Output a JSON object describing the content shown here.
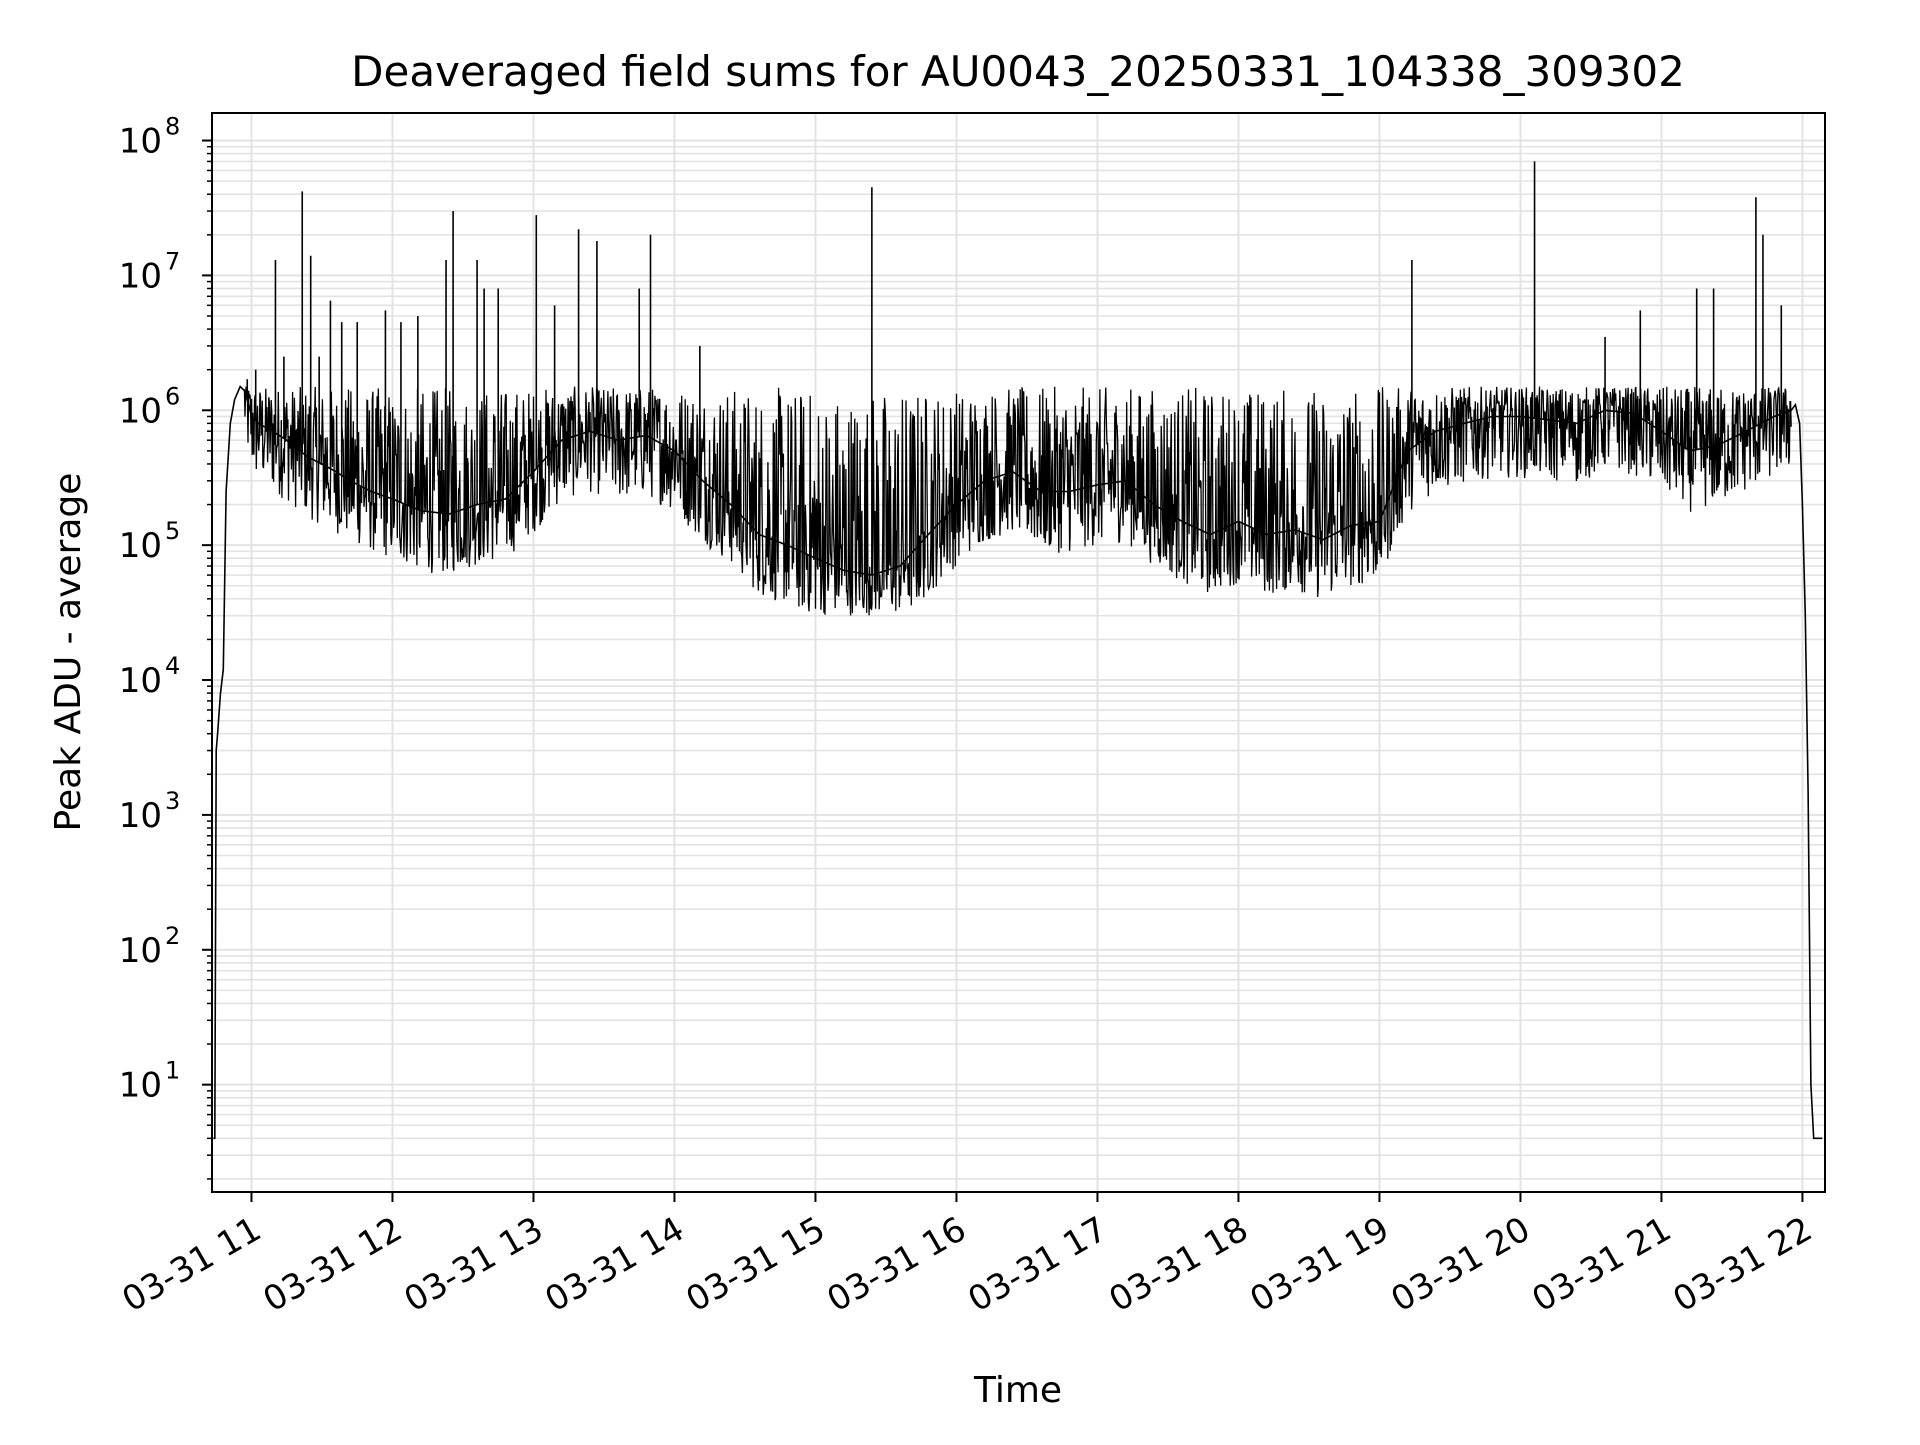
{
  "chart_data": {
    "type": "line",
    "title": "Deaveraged field sums for AU0043_20250331_104338_309302",
    "xlabel": "Time",
    "ylabel": "Peak ADU - average",
    "yscale": "log",
    "grid": true,
    "legend": "none",
    "x_tick_labels": [
      "03-31 11",
      "03-31 12",
      "03-31 13",
      "03-31 14",
      "03-31 15",
      "03-31 16",
      "03-31 17",
      "03-31 18",
      "03-31 19",
      "03-31 20",
      "03-31 21",
      "03-31 22"
    ],
    "x_tick_hours": [
      11,
      12,
      13,
      14,
      15,
      16,
      17,
      18,
      19,
      20,
      21,
      22
    ],
    "xlim_hours": [
      10.72,
      22.16
    ],
    "y_tick_exponents": [
      1,
      2,
      3,
      4,
      5,
      6,
      7,
      8
    ],
    "y_tick_base": "10",
    "ylim": [
      1.6,
      160000000
    ],
    "line_color": "#000000",
    "series": [
      {
        "x_hours": [
          10.73,
          10.74,
          10.75,
          10.76,
          10.78,
          10.8,
          10.82,
          10.85,
          10.88,
          10.92,
          10.95,
          10.98,
          11.0,
          11.05,
          11.15,
          11.25,
          11.4,
          11.5,
          11.6,
          11.7,
          11.85,
          12.0,
          12.2,
          12.4,
          12.6,
          12.8,
          13.0,
          13.2,
          13.4,
          13.6,
          13.8,
          14.0,
          14.2,
          14.4,
          14.6,
          14.8,
          15.0,
          15.2,
          15.4,
          15.6,
          15.8,
          16.0,
          16.2,
          16.4,
          16.6,
          16.8,
          17.0,
          17.2,
          17.4,
          17.6,
          17.8,
          18.0,
          18.2,
          18.4,
          18.6,
          18.8,
          19.0,
          19.2,
          19.4,
          19.6,
          19.8,
          20.0,
          20.2,
          20.4,
          20.6,
          20.8,
          21.0,
          21.2,
          21.4,
          21.6,
          21.8,
          21.92,
          21.95,
          21.98,
          22.0,
          22.02,
          22.04,
          22.06,
          22.08,
          22.1,
          22.12,
          22.14
        ],
        "y": [
          4,
          4,
          3000,
          4000,
          8000,
          12000,
          250000,
          800000,
          1200000,
          1500000,
          1400000,
          1100000,
          900000,
          800000,
          700000,
          600000,
          450000,
          400000,
          350000,
          300000,
          250000,
          220000,
          180000,
          170000,
          200000,
          220000,
          350000,
          600000,
          700000,
          600000,
          650000,
          500000,
          300000,
          200000,
          120000,
          100000,
          80000,
          65000,
          60000,
          70000,
          120000,
          200000,
          300000,
          350000,
          250000,
          250000,
          280000,
          300000,
          200000,
          150000,
          120000,
          150000,
          120000,
          130000,
          110000,
          140000,
          150000,
          500000,
          700000,
          800000,
          900000,
          900000,
          850000,
          800000,
          1000000,
          950000,
          700000,
          500000,
          550000,
          700000,
          900000,
          1000000,
          1100000,
          800000,
          200000,
          30000,
          1500,
          10,
          4,
          4,
          4,
          4
        ]
      }
    ],
    "spikes": [
      {
        "x": 10.97,
        "y": 1700000
      },
      {
        "x": 11.03,
        "y": 2000000
      },
      {
        "x": 11.17,
        "y": 13000000
      },
      {
        "x": 11.23,
        "y": 2500000
      },
      {
        "x": 11.36,
        "y": 42000000
      },
      {
        "x": 11.42,
        "y": 14000000
      },
      {
        "x": 11.48,
        "y": 2500000
      },
      {
        "x": 11.56,
        "y": 6500000
      },
      {
        "x": 11.64,
        "y": 4500000
      },
      {
        "x": 11.75,
        "y": 4500000
      },
      {
        "x": 11.95,
        "y": 5500000
      },
      {
        "x": 12.06,
        "y": 4500000
      },
      {
        "x": 12.18,
        "y": 5000000
      },
      {
        "x": 12.38,
        "y": 13000000
      },
      {
        "x": 12.43,
        "y": 30000000
      },
      {
        "x": 12.6,
        "y": 13000000
      },
      {
        "x": 12.65,
        "y": 8000000
      },
      {
        "x": 12.75,
        "y": 8000000
      },
      {
        "x": 13.02,
        "y": 28000000
      },
      {
        "x": 13.15,
        "y": 6000000
      },
      {
        "x": 13.32,
        "y": 22000000
      },
      {
        "x": 13.45,
        "y": 18000000
      },
      {
        "x": 13.75,
        "y": 8000000
      },
      {
        "x": 13.83,
        "y": 20000000
      },
      {
        "x": 14.18,
        "y": 3000000
      },
      {
        "x": 15.4,
        "y": 45000000
      },
      {
        "x": 19.23,
        "y": 13000000
      },
      {
        "x": 20.1,
        "y": 70000000
      },
      {
        "x": 20.6,
        "y": 3500000
      },
      {
        "x": 20.85,
        "y": 5500000
      },
      {
        "x": 21.25,
        "y": 8000000
      },
      {
        "x": 21.37,
        "y": 8000000
      },
      {
        "x": 21.67,
        "y": 38000000
      },
      {
        "x": 21.72,
        "y": 20000000
      },
      {
        "x": 21.85,
        "y": 6000000
      }
    ]
  }
}
